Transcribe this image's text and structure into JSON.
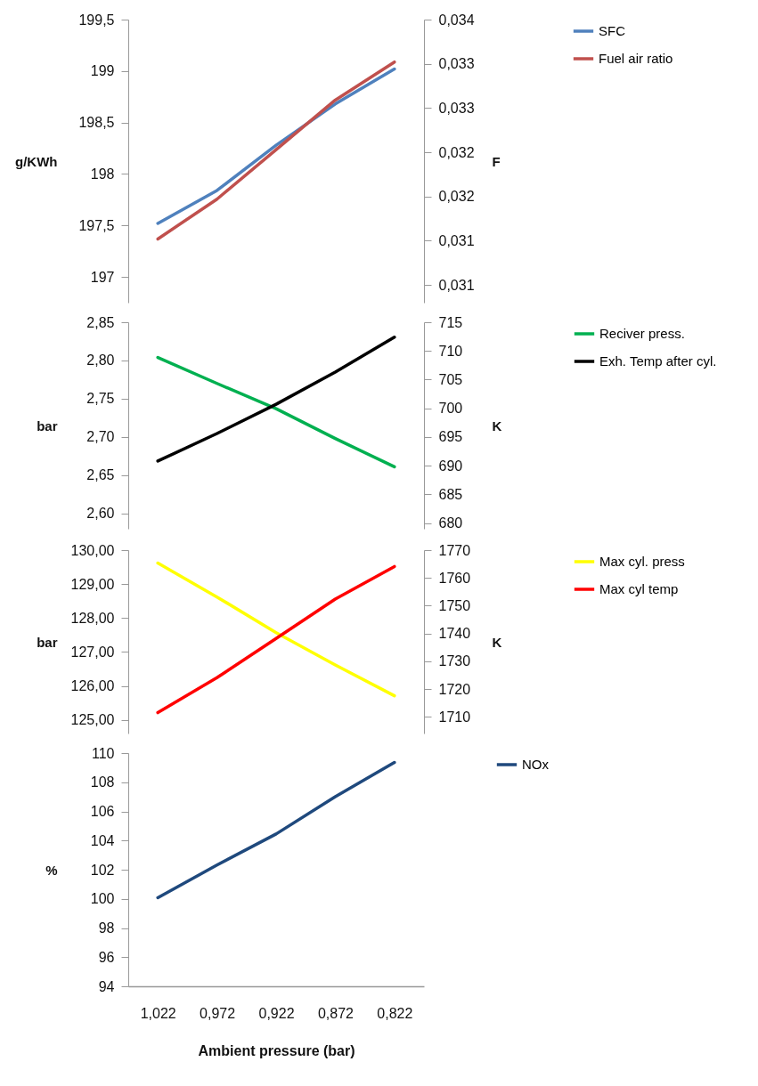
{
  "chart_data": [
    {
      "type": "line",
      "categories": [
        "1,022",
        "0,972",
        "0,922",
        "0,872",
        "0,822"
      ],
      "ylabel": "g/KWh",
      "y2label": "F",
      "ylim": [
        196.75,
        199.5
      ],
      "yticks": [
        197,
        {
          "value": 197.5,
          "label": "197,5"
        },
        198,
        {
          "value": 198.5,
          "label": "198,5"
        },
        199,
        {
          "value": 199.5,
          "label": "199,5"
        }
      ],
      "y2lim": [
        0.0308,
        0.034
      ],
      "y2ticks": [
        {
          "value": 0.031,
          "label": "0,031"
        },
        {
          "value": 0.0315,
          "label": "0,031"
        },
        {
          "value": 0.032,
          "label": "0,032"
        },
        {
          "value": 0.0325,
          "label": "0,032"
        },
        {
          "value": 0.033,
          "label": "0,033"
        },
        {
          "value": 0.0335,
          "label": "0,033"
        },
        {
          "value": 0.034,
          "label": "0,034"
        }
      ],
      "tick_labels": "y",
      "legend": "right",
      "series": [
        {
          "name": "SFC",
          "color": "#4f81bd",
          "values": [
            197.52,
            197.84,
            198.28,
            198.68,
            199.02
          ]
        },
        {
          "name": "Fuel air ratio",
          "color": "#c0504d",
          "axis": "y2",
          "values": [
            0.03152,
            0.03197,
            0.03253,
            0.03309,
            0.03352
          ]
        }
      ]
    },
    {
      "type": "line",
      "categories": [
        "1,022",
        "0,972",
        "0,922",
        "0,872",
        "0,822"
      ],
      "ylabel": "bar",
      "y2label": "K",
      "ylim": [
        2.58,
        2.85
      ],
      "yticks": [
        {
          "value": 2.6,
          "label": "2,60"
        },
        {
          "value": 2.65,
          "label": "2,65"
        },
        {
          "value": 2.7,
          "label": "2,70"
        },
        {
          "value": 2.75,
          "label": "2,75"
        },
        {
          "value": 2.8,
          "label": "2,80"
        },
        {
          "value": 2.85,
          "label": "2,85"
        }
      ],
      "y2lim": [
        679,
        715
      ],
      "y2ticks": [
        680,
        685,
        690,
        695,
        700,
        705,
        710,
        715
      ],
      "tick_labels": "y",
      "legend": "right",
      "series": [
        {
          "name": "Reciver press.",
          "color": "#00b050",
          "values": [
            2.804,
            2.77,
            2.737,
            2.698,
            2.661
          ]
        },
        {
          "name": "Exh. Temp after cyl.",
          "color": "#000000",
          "axis": "y2",
          "values": [
            690.8,
            695.6,
            700.7,
            706.3,
            712.4
          ]
        }
      ]
    },
    {
      "type": "line",
      "categories": [
        "1,022",
        "0,972",
        "0,922",
        "0,872",
        "0,822"
      ],
      "ylabel": "bar",
      "y2label": "K",
      "ylim": [
        124.6,
        130
      ],
      "yticks": [
        {
          "value": 125,
          "label": "125,00"
        },
        {
          "value": 126,
          "label": "126,00"
        },
        {
          "value": 127,
          "label": "127,00"
        },
        {
          "value": 128,
          "label": "128,00"
        },
        {
          "value": 129,
          "label": "129,00"
        },
        {
          "value": 130,
          "label": "130,00"
        }
      ],
      "y2lim": [
        1704,
        1770
      ],
      "y2ticks": [
        1710,
        1720,
        1730,
        1740,
        1750,
        1760,
        1770
      ],
      "tick_labels": "y",
      "legend": "right",
      "series": [
        {
          "name": "Max cyl. press",
          "color": "#ffff00",
          "values": [
            129.62,
            128.62,
            127.57,
            126.62,
            125.71
          ]
        },
        {
          "name": "Max cyl temp",
          "color": "#ff0000",
          "axis": "y2",
          "values": [
            1711.5,
            1724.1,
            1738.2,
            1752.4,
            1764.1
          ]
        }
      ]
    },
    {
      "type": "line",
      "categories": [
        "1,022",
        "0,972",
        "0,922",
        "0,872",
        "0,822"
      ],
      "xlabel": "Ambient pressure  (bar)",
      "ylabel": "%",
      "ylim": [
        94,
        110
      ],
      "yticks": [
        94,
        96,
        98,
        100,
        102,
        104,
        106,
        108,
        110
      ],
      "legend": "right",
      "series": [
        {
          "name": "NOx",
          "color": "#1f497d",
          "values": [
            100.08,
            102.32,
            104.45,
            107.01,
            109.36
          ]
        }
      ]
    }
  ]
}
